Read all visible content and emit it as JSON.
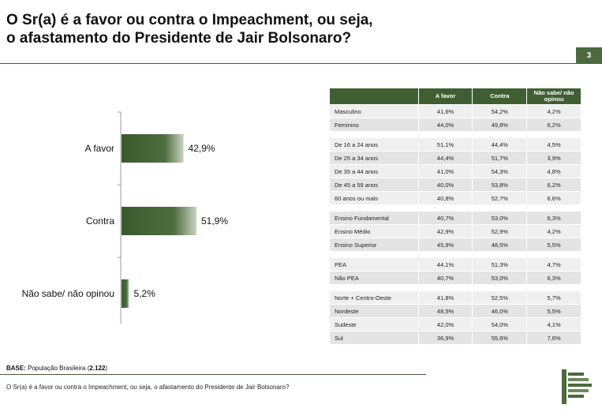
{
  "page": {
    "title_line1": "O Sr(a) é a favor ou contra o Impeachment, ou seja,",
    "title_line2": "o afastamento do Presidente de Jair Bolsonaro?",
    "page_number": "3",
    "base_label": "BASE:",
    "base_text": "População Brasileira (",
    "base_count": "2.122",
    "base_close": ")",
    "question": "O Sr(a) é a favor ou contra o Impeachment, ou seja, o afastamento do Presidente de Jair Bolsonaro?",
    "accent_color": "#3f5f32"
  },
  "chart_data": {
    "type": "bar",
    "orientation": "horizontal",
    "categories": [
      "A favor",
      "Contra",
      "Não sabe/ não opinou"
    ],
    "values": [
      42.9,
      51.9,
      5.2
    ],
    "value_labels": [
      "42,9%",
      "51,9%",
      "5,2%"
    ],
    "unit": "%",
    "xlim": [
      0,
      60
    ],
    "grid": false,
    "bar_color": "#3f5f32"
  },
  "table": {
    "headers": [
      "",
      "A favor",
      "Contra",
      "Não sabe/ não opinou"
    ],
    "groups": [
      [
        [
          "Masculino",
          "41,6%",
          "54,2%",
          "4,2%"
        ],
        [
          "Feminino",
          "44,0%",
          "49,8%",
          "6,2%"
        ]
      ],
      [
        [
          "De 16 a 24 anos",
          "51,1%",
          "44,4%",
          "4,5%"
        ],
        [
          "De 25 a 34 anos",
          "44,4%",
          "51,7%",
          "3,9%"
        ],
        [
          "De 35 a 44 anos",
          "41,0%",
          "54,3%",
          "4,8%"
        ],
        [
          "De 45 a 59 anos",
          "40,0%",
          "53,8%",
          "6,2%"
        ],
        [
          "60 anos ou mais",
          "40,8%",
          "52,7%",
          "6,6%"
        ]
      ],
      [
        [
          "Ensino Fundamental",
          "40,7%",
          "53,0%",
          "6,3%"
        ],
        [
          "Ensino Médio",
          "42,9%",
          "52,9%",
          "4,2%"
        ],
        [
          "Ensino Superior",
          "45,9%",
          "48,5%",
          "5,5%"
        ]
      ],
      [
        [
          " PEA",
          "44,1%",
          "51,3%",
          "4,7%"
        ],
        [
          " Não PEA",
          "40,7%",
          "53,0%",
          "6,3%"
        ]
      ],
      [
        [
          "Norte + Centro-Oeste",
          "41,8%",
          "52,5%",
          "5,7%"
        ],
        [
          "Nordeste",
          "48,5%",
          "46,0%",
          "5,5%"
        ],
        [
          "Sudeste",
          "42,0%",
          "54,0%",
          "4,1%"
        ],
        [
          "Sul",
          "36,9%",
          "55,6%",
          "7,6%"
        ]
      ]
    ]
  }
}
